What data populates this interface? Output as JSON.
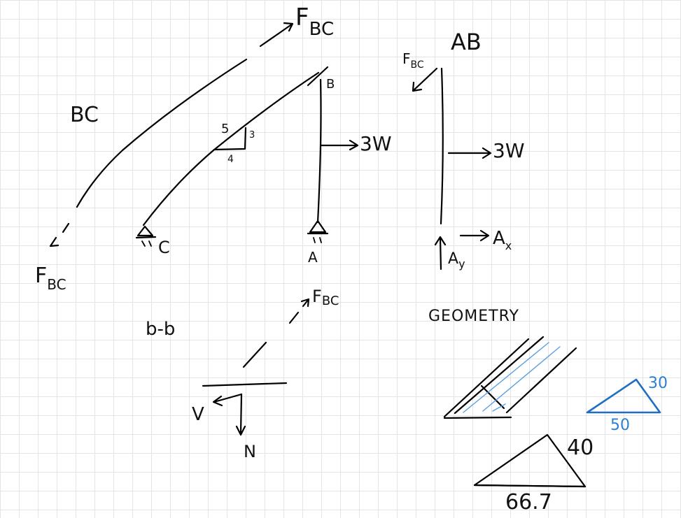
{
  "bc_member": {
    "title": "BC",
    "force_top": "F",
    "force_top_sub": "BC",
    "force_bottom": "F",
    "force_bottom_sub": "BC"
  },
  "frame": {
    "slope_hyp": "5",
    "slope_rise": "3",
    "slope_run": "4",
    "joint_b": "B",
    "support_c": "C",
    "support_a": "A",
    "load": "3W"
  },
  "ab_member": {
    "title": "AB",
    "force_bc": "F",
    "force_bc_sub": "BC",
    "load": "3W",
    "ax": "A",
    "ax_sub": "x",
    "ay": "A",
    "ay_sub": "y"
  },
  "section": {
    "title": "b-b",
    "force": "F",
    "force_sub": "BC",
    "shear": "V",
    "normal": "N"
  },
  "geometry": {
    "title": "GEOMETRY",
    "small_tri_side": "30",
    "small_tri_base": "50",
    "large_tri_side": "40",
    "large_tri_base": "66.7"
  },
  "colors": {
    "ink": "#000000",
    "accent": "#1e6fc0",
    "grid": "#e4e4e4"
  }
}
